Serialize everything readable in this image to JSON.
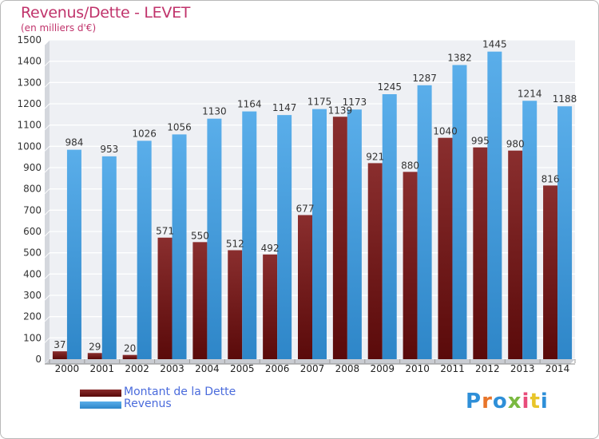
{
  "title": "Revenus/Dette - LEVET",
  "subtitle": "(en milliers d'€)",
  "brand": {
    "text": "Proxiti",
    "colors": [
      "#2e8fd8",
      "#e8752a",
      "#2e8fd8",
      "#7ab940",
      "#e84c7a",
      "#e8c52a",
      "#2e8fd8"
    ]
  },
  "chart_data": {
    "type": "bar",
    "categories": [
      "2000",
      "2001",
      "2002",
      "2003",
      "2004",
      "2005",
      "2006",
      "2007",
      "2008",
      "2009",
      "2010",
      "2011",
      "2012",
      "2013",
      "2014"
    ],
    "series": [
      {
        "name": "Montant de la Dette",
        "color": "#7a1a1a",
        "values": [
          37,
          29,
          20,
          571,
          550,
          512,
          492,
          677,
          1139,
          921,
          880,
          1040,
          995,
          980,
          816
        ]
      },
      {
        "name": "Revenus",
        "color": "#3a9be0",
        "values": [
          984,
          953,
          1026,
          1056,
          1130,
          1164,
          1147,
          1175,
          1173,
          1245,
          1287,
          1382,
          1445,
          1214,
          1188
        ]
      }
    ],
    "ylim": [
      0,
      1500
    ],
    "yticks": [
      0,
      100,
      200,
      300,
      400,
      500,
      600,
      700,
      800,
      900,
      1000,
      1100,
      1200,
      1300,
      1400,
      1500
    ],
    "grid": true,
    "legend_position": "bottom-left"
  }
}
